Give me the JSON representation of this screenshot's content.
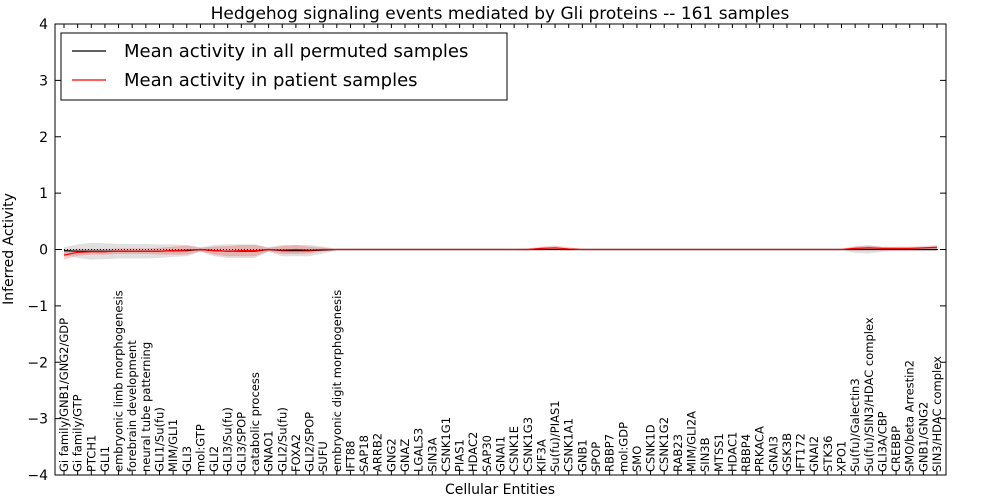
{
  "chart_data": {
    "type": "line",
    "title": "Hedgehog signaling events mediated by Gli proteins -- 161 samples",
    "xlabel": "Cellular Entities",
    "ylabel": "Inferred Activity",
    "ylim": [
      -4,
      4
    ],
    "yticks": [
      4,
      3,
      2,
      1,
      0,
      -1,
      -2,
      -3,
      -4
    ],
    "ytick_labels": [
      "4",
      "3",
      "2",
      "1",
      "0",
      "−1",
      "−2",
      "−3",
      "−4"
    ],
    "legend": {
      "position": "top-left",
      "entries": [
        {
          "label": "Mean activity in all permuted samples",
          "color": "#000000"
        },
        {
          "label": "Mean activity in patient samples",
          "color": "#ff0000"
        }
      ]
    },
    "categories": [
      "Gi family/GNB1/GNG2/GDP",
      "Gi family/GTP",
      "PTCH1",
      "GLI1",
      "embryonic limb morphogenesis",
      "forebrain development",
      "neural tube patterning",
      "GLI1/Su(fu)",
      "MIM/GLI1",
      "GLI3",
      "mol:GTP",
      "GLI2",
      "GLI3/Su(fu)",
      "GLI3/SPOP",
      "catabolic process",
      "GNAO1",
      "GLI2/Su(fu)",
      "FOXA2",
      "GLI2/SPOP",
      "SUFU",
      "embryonic digit morphogenesis",
      "IFT88",
      "SAP18",
      "ARRB2",
      "GNG2",
      "GNAZ",
      "LGALS3",
      "SIN3A",
      "CSNK1G1",
      "PIAS1",
      "HDAC2",
      "SAP30",
      "GNAI1",
      "CSNK1E",
      "CSNK1G3",
      "KIF3A",
      "Su(fu)/PIAS1",
      "CSNK1A1",
      "GNB1",
      "SPOP",
      "RBBP7",
      "mol:GDP",
      "SMO",
      "CSNK1D",
      "CSNK1G2",
      "RAB23",
      "MIM/GLI2A",
      "SIN3B",
      "MTSS1",
      "HDAC1",
      "RBBP4",
      "PRKACA",
      "GNAI3",
      "GSK3B",
      "IFT172",
      "GNAI2",
      "STK36",
      "XPO1",
      "Su(fu)/Galectin3",
      "Su(fu)/SIN3/HDAC complex",
      "GLI3A/CBP",
      "CREBBP",
      "SMO/beta Arrestin2",
      "GNB1/GNG2",
      "SIN3/HDAC complex"
    ],
    "series": [
      {
        "name": "Mean activity in all permuted samples",
        "color": "#000000",
        "values": [
          -0.02,
          -0.03,
          -0.03,
          -0.03,
          -0.03,
          -0.03,
          -0.03,
          -0.03,
          -0.02,
          -0.02,
          0.0,
          -0.02,
          -0.03,
          -0.03,
          -0.03,
          0.0,
          -0.02,
          -0.02,
          -0.02,
          -0.01,
          0.0,
          0.0,
          0.0,
          0.0,
          0.0,
          0.0,
          0.0,
          0.0,
          0.0,
          0.0,
          0.0,
          0.0,
          0.0,
          0.0,
          0.0,
          0.0,
          0.0,
          0.0,
          0.0,
          0.0,
          0.0,
          0.0,
          0.0,
          0.0,
          0.0,
          0.0,
          0.0,
          0.0,
          0.0,
          0.0,
          0.0,
          0.0,
          0.0,
          0.0,
          0.0,
          0.0,
          0.0,
          0.0,
          0.0,
          0.0,
          0.0,
          0.0,
          0.0,
          0.0,
          0.0
        ],
        "band": [
          0.06,
          0.12,
          0.15,
          0.14,
          0.13,
          0.13,
          0.13,
          0.12,
          0.11,
          0.1,
          0.04,
          0.1,
          0.12,
          0.12,
          0.12,
          0.04,
          0.1,
          0.1,
          0.1,
          0.06,
          0.01,
          0.01,
          0.01,
          0.01,
          0.01,
          0.01,
          0.01,
          0.01,
          0.01,
          0.01,
          0.01,
          0.01,
          0.01,
          0.01,
          0.01,
          0.01,
          0.01,
          0.01,
          0.01,
          0.01,
          0.01,
          0.01,
          0.01,
          0.01,
          0.01,
          0.01,
          0.01,
          0.01,
          0.01,
          0.01,
          0.01,
          0.01,
          0.01,
          0.01,
          0.01,
          0.01,
          0.01,
          0.01,
          0.06,
          0.07,
          0.04,
          0.03,
          0.03,
          0.03,
          0.03
        ]
      },
      {
        "name": "Mean activity in patient samples",
        "color": "#ff0000",
        "values": [
          -0.1,
          -0.05,
          -0.04,
          -0.04,
          -0.03,
          -0.03,
          -0.03,
          -0.03,
          -0.02,
          -0.01,
          0.0,
          -0.02,
          -0.03,
          -0.02,
          -0.02,
          0.0,
          -0.01,
          0.0,
          -0.01,
          0.0,
          0.0,
          0.0,
          0.0,
          0.0,
          0.0,
          0.0,
          0.0,
          0.0,
          0.0,
          0.0,
          0.0,
          0.0,
          0.0,
          0.0,
          0.0,
          0.02,
          0.03,
          0.01,
          0.0,
          0.0,
          0.0,
          0.0,
          0.0,
          0.0,
          0.0,
          0.0,
          0.0,
          0.0,
          0.0,
          0.0,
          0.0,
          0.0,
          0.0,
          0.0,
          0.0,
          0.0,
          0.0,
          0.0,
          0.02,
          0.03,
          0.02,
          0.02,
          0.02,
          0.03,
          0.04
        ],
        "band": [
          0.08,
          0.06,
          0.05,
          0.05,
          0.05,
          0.05,
          0.05,
          0.06,
          0.07,
          0.08,
          0.03,
          0.07,
          0.09,
          0.1,
          0.1,
          0.03,
          0.07,
          0.08,
          0.06,
          0.03,
          0.01,
          0.01,
          0.01,
          0.01,
          0.01,
          0.01,
          0.01,
          0.01,
          0.01,
          0.01,
          0.01,
          0.01,
          0.01,
          0.01,
          0.02,
          0.03,
          0.04,
          0.03,
          0.01,
          0.01,
          0.01,
          0.01,
          0.01,
          0.01,
          0.01,
          0.01,
          0.01,
          0.01,
          0.01,
          0.01,
          0.01,
          0.01,
          0.01,
          0.01,
          0.01,
          0.01,
          0.01,
          0.01,
          0.03,
          0.04,
          0.03,
          0.03,
          0.03,
          0.03,
          0.04
        ]
      }
    ]
  }
}
